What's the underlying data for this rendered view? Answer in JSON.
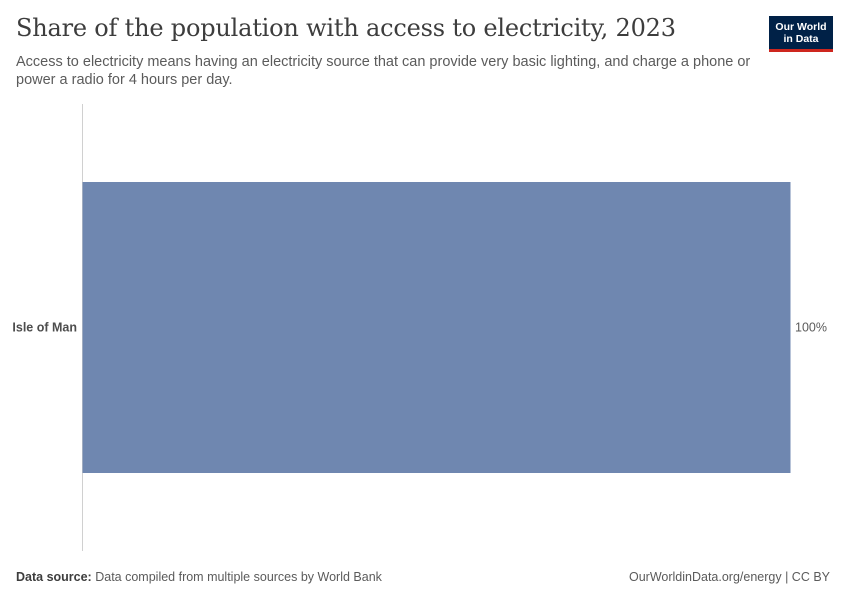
{
  "header": {
    "title": "Share of the population with access to electricity, 2023",
    "subtitle": "Access to electricity means having an electricity source that can provide very basic lighting, and charge a phone or power a radio for 4 hours per day."
  },
  "logo": {
    "line1": "Our World",
    "line2": "in Data"
  },
  "footer": {
    "source_label": "Data source:",
    "source_text": "Data compiled from multiple sources by World Bank",
    "url": "OurWorldinData.org/energy | CC BY"
  },
  "colors": {
    "bar": "#6f87b0",
    "axis": "#d0d0d0",
    "logo_bg": "#002147",
    "logo_accent": "#ce261e"
  },
  "chart_data": {
    "type": "bar",
    "orientation": "horizontal",
    "categories": [
      "Isle of Man"
    ],
    "values": [
      100
    ],
    "value_labels": [
      "100%"
    ],
    "xlim": [
      0,
      100
    ],
    "grid": false
  }
}
